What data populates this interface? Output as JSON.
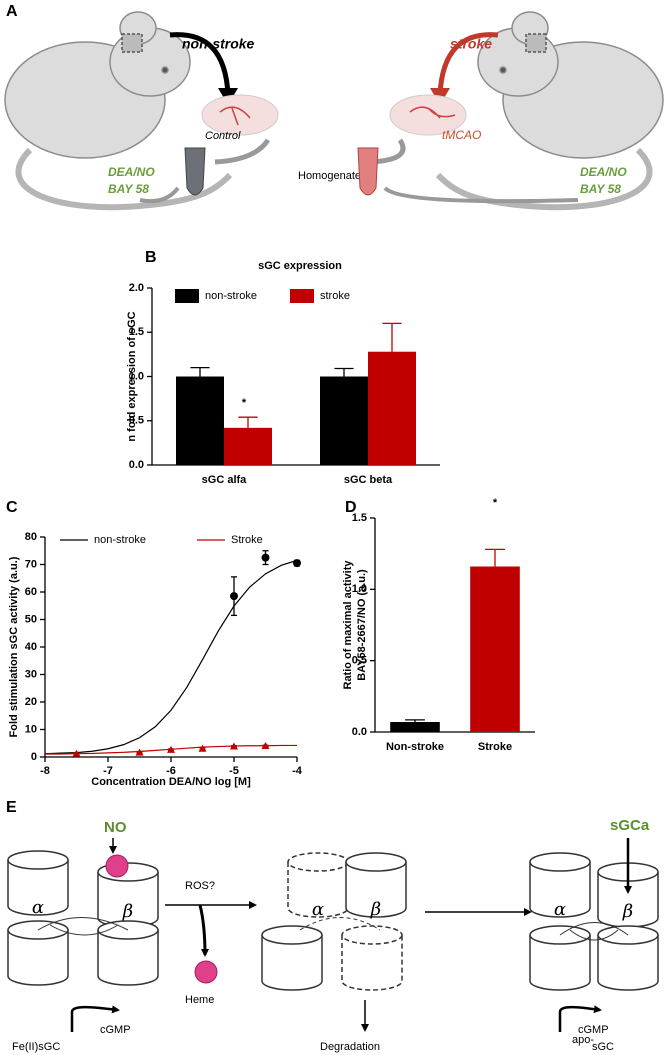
{
  "panel_labels": [
    "A",
    "B",
    "C",
    "D",
    "E"
  ],
  "figure_a": {
    "arrow_left": "non-stroke",
    "arrow_right": "stroke",
    "left_label": "Control",
    "right_label": "tMCAO",
    "center_label": "Homogenate",
    "left_treatment": [
      "DEA/NO",
      "BAY 58"
    ],
    "right_treatment": [
      "DEA/NO",
      "BAY 58"
    ]
  },
  "chart_data": [
    {
      "type": "bar",
      "title": "sGC expression",
      "ylabel": "n fold expression  of sGC",
      "categories": [
        "sGC alfa",
        "sGC beta"
      ],
      "series": [
        {
          "name": "non-stroke",
          "color": "#000000",
          "values": [
            1.0,
            1.0
          ],
          "errors": [
            0.1,
            0.09
          ]
        },
        {
          "name": "stroke",
          "color": "#c00000",
          "values": [
            0.42,
            1.28
          ],
          "errors": [
            0.12,
            0.32
          ]
        }
      ],
      "annotation": "*",
      "ylim": [
        0,
        2
      ],
      "yticks": [
        {
          "value": 0,
          "label": "0.0"
        },
        0.5,
        {
          "value": 1,
          "label": "1.0"
        },
        1.5,
        {
          "value": 2,
          "label": "2.0"
        }
      ]
    },
    {
      "type": "line",
      "ylabel": "Fold stimulation sGC activity (a.u.)",
      "xlabel": "Concentration DEA/NO log [M]",
      "series": [
        {
          "name": "non-stroke",
          "color": "#000000",
          "marker": "circle",
          "x": [
            -8,
            -7.75,
            -7.5,
            -7.25,
            -7,
            -6.75,
            -6.5,
            -6.25,
            -6,
            -5.75,
            -5.5,
            -5.25,
            -5,
            -4.75,
            -4.5,
            -4.25,
            -4
          ],
          "values": [
            1.2,
            1.4,
            1.6,
            2.1,
            3.0,
            4.5,
            7.0,
            11.0,
            17.0,
            25.3,
            35.4,
            45.8,
            54.9,
            61.8,
            66.6,
            69.7,
            71.5
          ],
          "points": {
            "x": [
              -5,
              -4.5,
              -4
            ],
            "values": [
              58.5,
              72.5,
              70.5
            ],
            "errors": [
              7,
              2.5,
              1
            ]
          }
        },
        {
          "name": "Stroke",
          "color": "#c00000",
          "marker": "triangle",
          "x": [
            -8,
            -7.75,
            -7.5,
            -7.25,
            -7,
            -6.75,
            -6.5,
            -6.25,
            -6,
            -5.75,
            -5.5,
            -5.25,
            -5,
            -4.75,
            -4.5,
            -4.25,
            -4
          ],
          "values": [
            1.1,
            1.1,
            1.2,
            1.3,
            1.5,
            1.7,
            2.0,
            2.4,
            2.8,
            3.2,
            3.6,
            3.8,
            4.0,
            4.1,
            4.1,
            4.2,
            4.2
          ],
          "points": {
            "x": [
              -7.5,
              -6.5,
              -6,
              -5.5,
              -5,
              -4.5
            ],
            "values": [
              1.2,
              1.6,
              2.6,
              3.0,
              3.8,
              4.0
            ],
            "errors": [
              0.2,
              0.2,
              0.3,
              0.3,
              0.3,
              0.3
            ]
          }
        }
      ],
      "xlim": [
        -8,
        -4
      ],
      "xticks": [
        -8,
        -7,
        -6,
        -5,
        -4
      ],
      "ylim": [
        0,
        80
      ],
      "yticks": [
        0,
        10,
        20,
        30,
        40,
        50,
        60,
        70,
        80
      ]
    },
    {
      "type": "bar",
      "ylabel": [
        "Ratio of maximal  activity",
        "BAY58-2667/NO  (a.u.)"
      ],
      "categories": [
        "Non-stroke",
        "Stroke"
      ],
      "values": [
        0.07,
        1.16
      ],
      "errors": [
        0.015,
        0.12
      ],
      "colors": [
        "#000000",
        "#c00000"
      ],
      "annotation": "*",
      "ylim": [
        0,
        1.5
      ],
      "yticks": [
        {
          "value": 0,
          "label": "0.0"
        },
        0.5,
        {
          "value": 1,
          "label": "1.0"
        },
        1.5
      ]
    }
  ],
  "figure_e": {
    "inducer_left": "NO",
    "inducer_right": "sGCa",
    "subunits": [
      "α",
      "β"
    ],
    "arrow_label": "ROS?",
    "released": "Heme",
    "product": "cGMP",
    "states": [
      "Fe(II)sGC",
      "Degradation",
      "sGC"
    ],
    "apo_prefix": "apo-"
  }
}
